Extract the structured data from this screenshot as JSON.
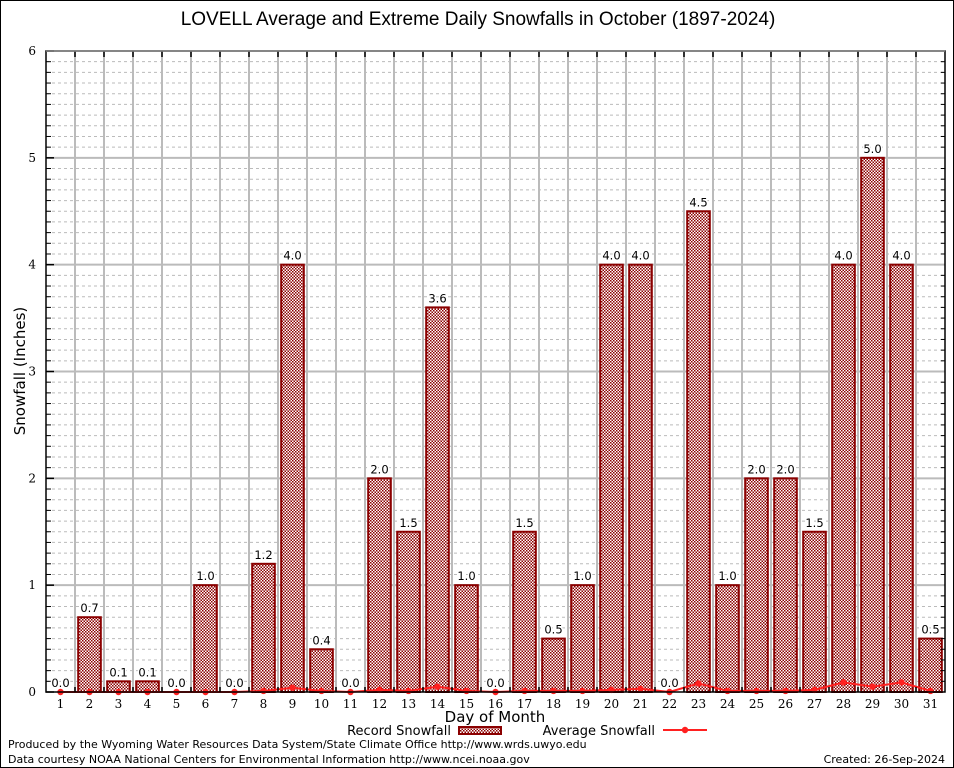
{
  "chart_data": {
    "type": "bar",
    "title": "LOVELL Average and Extreme Daily Snowfalls in October (1897-2024)",
    "xlabel": "Day of Month",
    "ylabel": "Snowfall (Inches)",
    "ylim": [
      0,
      6
    ],
    "yticks": [
      "0",
      "1",
      "2",
      "3",
      "4",
      "5",
      "6"
    ],
    "grid": true,
    "categories": [
      "1",
      "2",
      "3",
      "4",
      "5",
      "6",
      "7",
      "8",
      "9",
      "10",
      "11",
      "12",
      "13",
      "14",
      "15",
      "16",
      "17",
      "18",
      "19",
      "20",
      "21",
      "22",
      "23",
      "24",
      "25",
      "26",
      "27",
      "28",
      "29",
      "30",
      "31"
    ],
    "series": [
      {
        "name": "Record Snowfall",
        "kind": "bar",
        "color": "#8b0000",
        "values": [
          0.0,
          0.7,
          0.1,
          0.1,
          0.0,
          1.0,
          0.0,
          1.2,
          4.0,
          0.4,
          0.0,
          2.0,
          1.5,
          3.6,
          1.0,
          0.0,
          1.5,
          0.5,
          1.0,
          4.0,
          4.0,
          0.0,
          4.5,
          1.0,
          2.0,
          2.0,
          1.5,
          4.0,
          5.0,
          4.0,
          0.5
        ],
        "labels": [
          "0.0",
          "0.7",
          "0.1",
          "0.1",
          "0.0",
          "1.0",
          "0.0",
          "1.2",
          "4.0",
          "0.4",
          "0.0",
          "2.0",
          "1.5",
          "3.6",
          "1.0",
          "0.0",
          "1.5",
          "0.5",
          "1.0",
          "4.0",
          "4.0",
          "0.0",
          "4.5",
          "1.0",
          "2.0",
          "2.0",
          "1.5",
          "4.0",
          "5.0",
          "4.0",
          "0.5"
        ]
      },
      {
        "name": "Average Snowfall",
        "kind": "line",
        "color": "#ff2020",
        "values": [
          0.0,
          0.0,
          0.0,
          0.0,
          0.0,
          0.0,
          0.0,
          0.01,
          0.04,
          0.01,
          0.0,
          0.02,
          0.01,
          0.05,
          0.01,
          0.0,
          0.01,
          0.01,
          0.01,
          0.02,
          0.03,
          0.0,
          0.08,
          0.01,
          0.01,
          0.01,
          0.02,
          0.09,
          0.05,
          0.09,
          0.01
        ]
      }
    ],
    "legend": {
      "placement": "bottom",
      "items": [
        "Record Snowfall",
        "Average Snowfall"
      ]
    }
  },
  "footer": {
    "line1": "Produced by the Wyoming Water Resources Data System/State Climate Office http://www.wrds.uwyo.edu",
    "line2": "Data courtesy NOAA National Centers for Environmental Information http://www.ncei.noaa.gov",
    "created": "Created: 26-Sep-2024"
  }
}
